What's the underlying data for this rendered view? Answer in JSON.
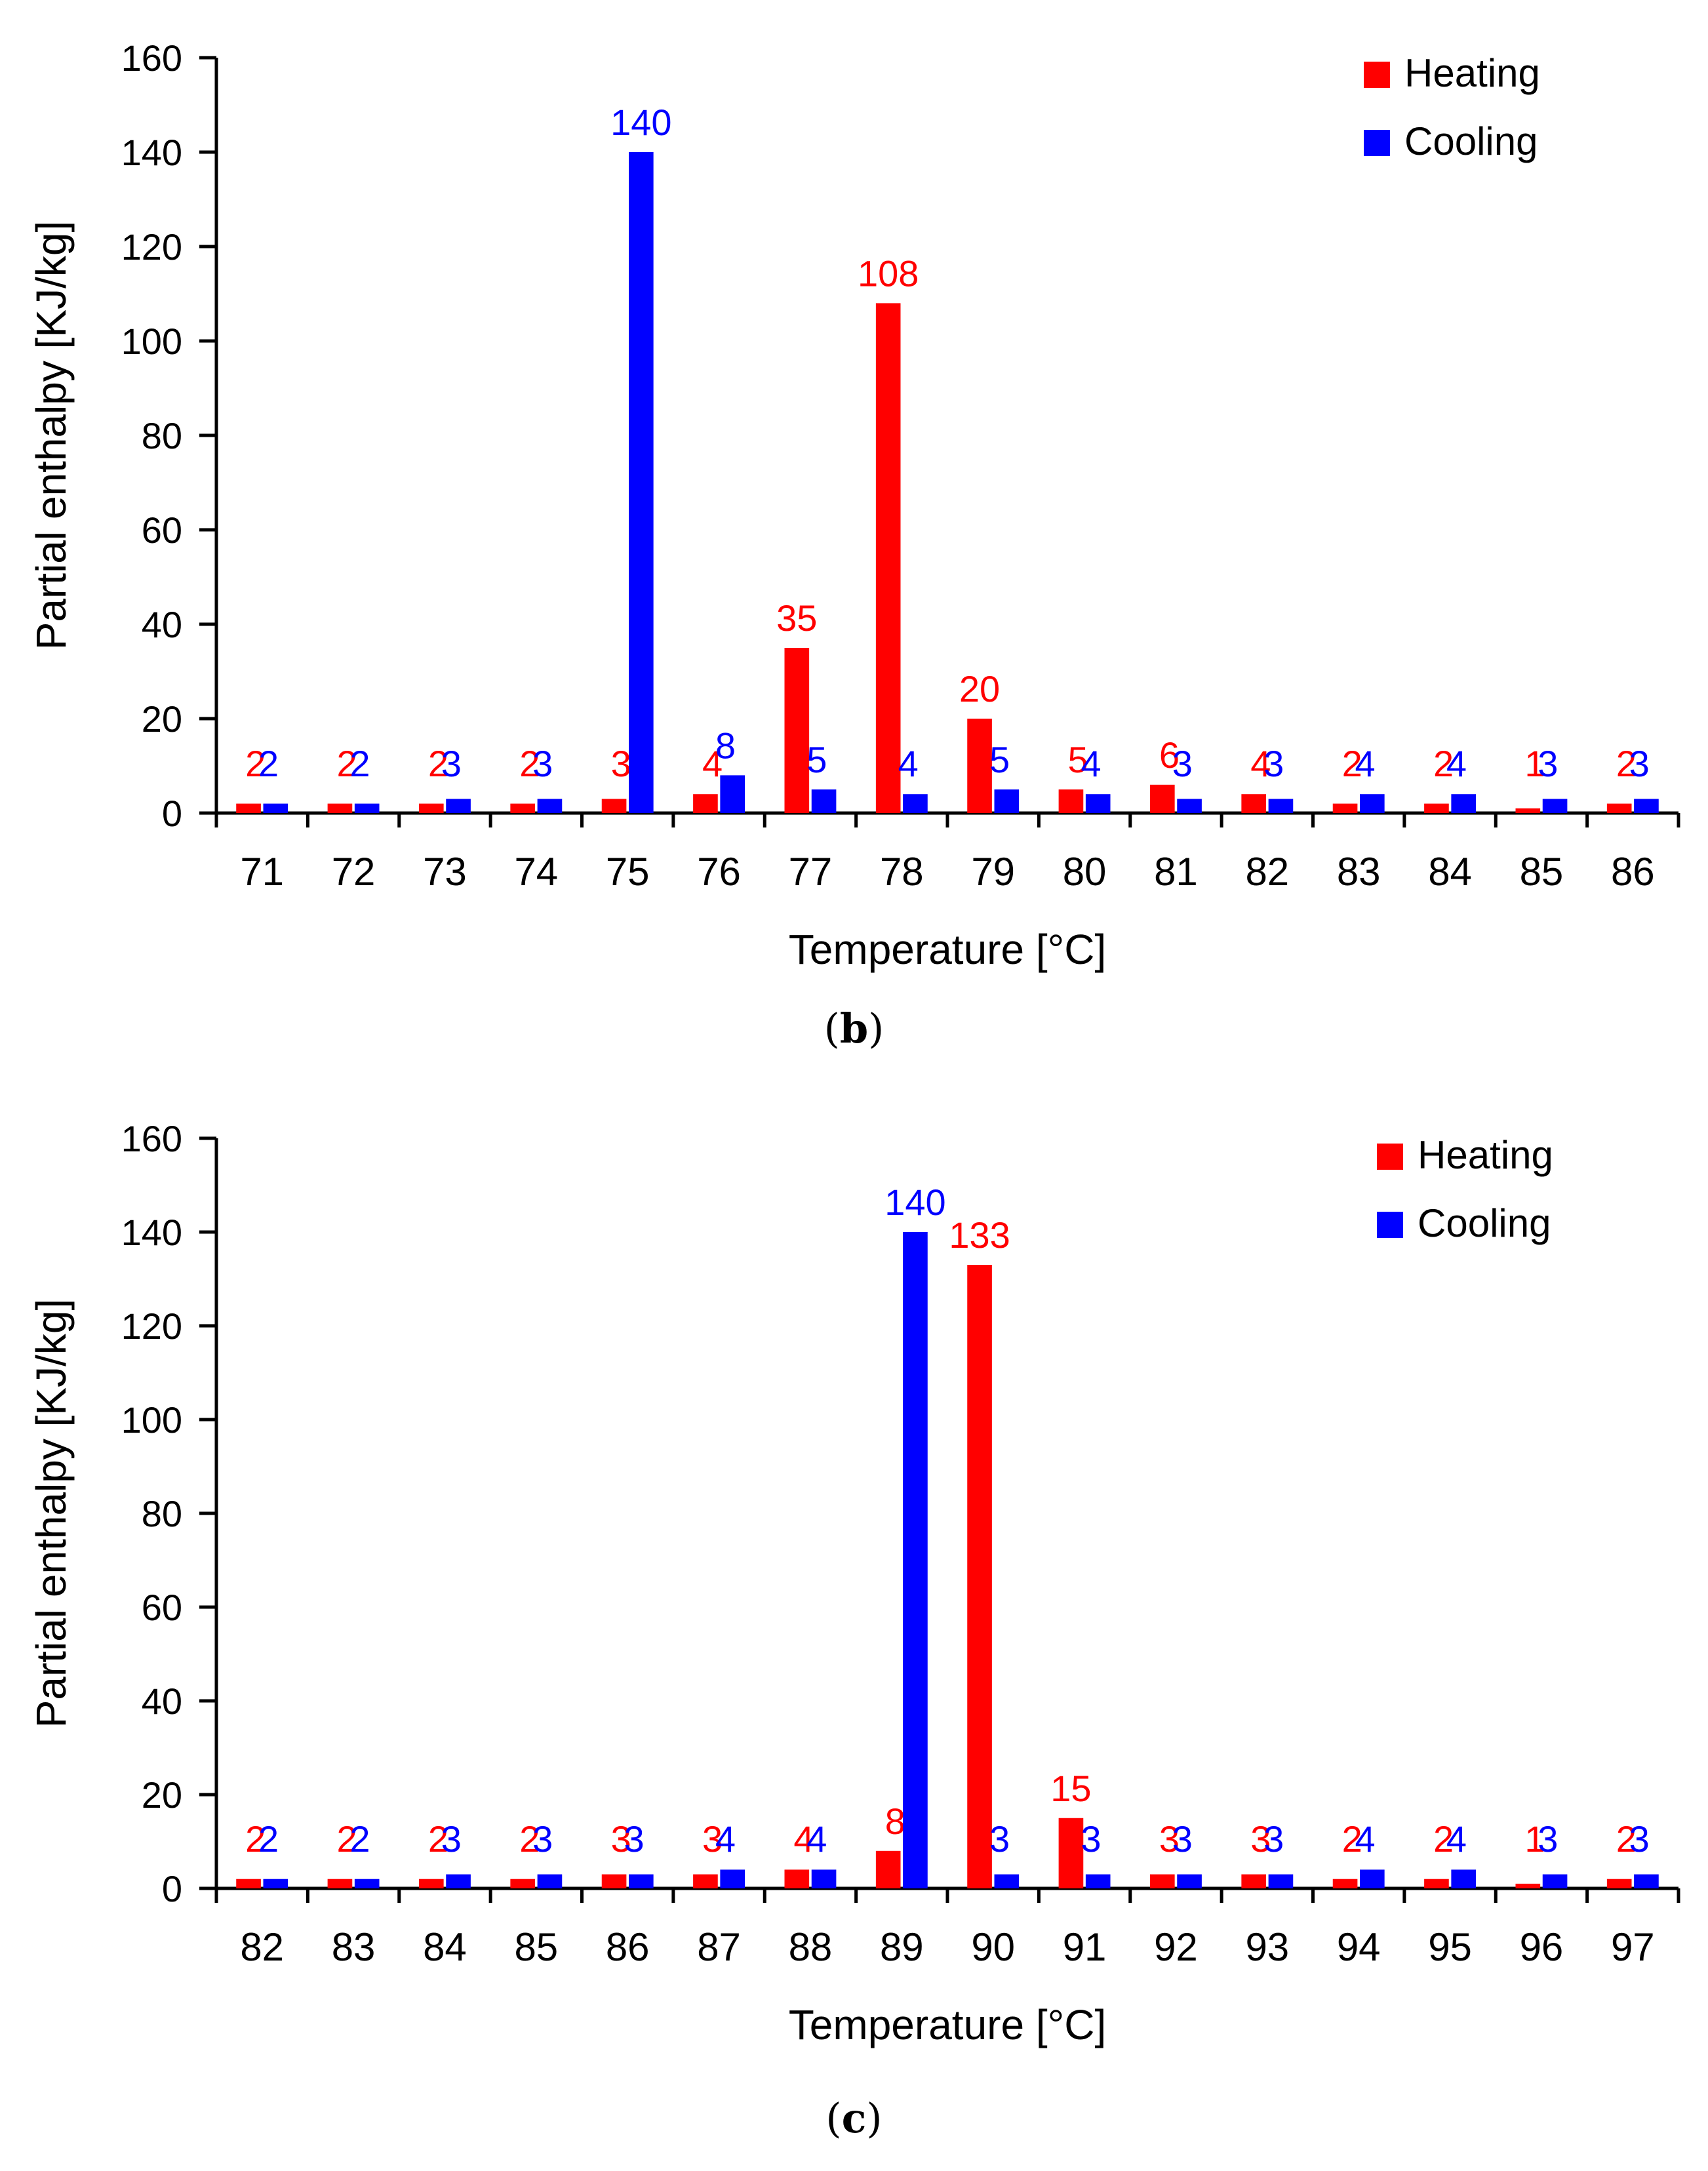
{
  "chart_data": [
    {
      "type": "bar",
      "panel": "b",
      "caption_open": "(",
      "caption_letter": "b",
      "caption_close": ")",
      "xlabel": "Temperature [°C]",
      "ylabel": "Partial enthalpy [KJ/kg]",
      "ylim": [
        0,
        160
      ],
      "yticks": [
        0,
        20,
        40,
        60,
        80,
        100,
        120,
        140,
        160
      ],
      "categories": [
        "71",
        "72",
        "73",
        "74",
        "75",
        "76",
        "77",
        "78",
        "79",
        "80",
        "81",
        "82",
        "83",
        "84",
        "85",
        "86"
      ],
      "legend_position": "top-right",
      "series": [
        {
          "name": "Heating",
          "color": "#ff0000",
          "values": [
            2,
            2,
            2,
            2,
            3,
            4,
            35,
            108,
            20,
            5,
            6,
            4,
            2,
            2,
            1,
            2
          ],
          "labels": [
            "2",
            "2",
            "2",
            "2",
            "3",
            "4",
            "35",
            "108",
            "20",
            "5",
            "6",
            "4",
            "2",
            "2",
            "1",
            "2"
          ]
        },
        {
          "name": "Cooling",
          "color": "#0000ff",
          "values": [
            2,
            2,
            3,
            3,
            140,
            8,
            5,
            4,
            5,
            4,
            3,
            3,
            4,
            4,
            3,
            3
          ],
          "labels": [
            "2",
            "2",
            "3",
            "3",
            "140",
            "8",
            "5",
            "4",
            "5",
            "4",
            "3",
            "3",
            "4",
            "4",
            "3",
            "3"
          ]
        }
      ]
    },
    {
      "type": "bar",
      "panel": "c",
      "caption_open": "(",
      "caption_letter": "c",
      "caption_close": ")",
      "xlabel": "Temperature [°C]",
      "ylabel": "Partial enthalpy [KJ/kg]",
      "ylim": [
        0,
        160
      ],
      "yticks": [
        0,
        20,
        40,
        60,
        80,
        100,
        120,
        140,
        160
      ],
      "categories": [
        "82",
        "83",
        "84",
        "85",
        "86",
        "87",
        "88",
        "89",
        "90",
        "91",
        "92",
        "93",
        "94",
        "95",
        "96",
        "97"
      ],
      "legend_position": "top-right",
      "series": [
        {
          "name": "Heating",
          "color": "#ff0000",
          "values": [
            2,
            2,
            2,
            2,
            3,
            3,
            4,
            8,
            133,
            15,
            3,
            3,
            2,
            2,
            1,
            2
          ],
          "labels": [
            "2",
            "2",
            "2",
            "2",
            "3",
            "3",
            "4",
            "8",
            "133",
            "15",
            "3",
            "3",
            "2",
            "2",
            "1",
            "2"
          ]
        },
        {
          "name": "Cooling",
          "color": "#0000ff",
          "values": [
            2,
            2,
            3,
            3,
            3,
            4,
            4,
            140,
            3,
            3,
            3,
            3,
            4,
            4,
            3,
            3
          ],
          "labels": [
            "2",
            "2",
            "3",
            "3",
            "3",
            "4",
            "4",
            "140",
            "3",
            "3",
            "3",
            "3",
            "4",
            "4",
            "3",
            "3"
          ]
        }
      ]
    }
  ]
}
